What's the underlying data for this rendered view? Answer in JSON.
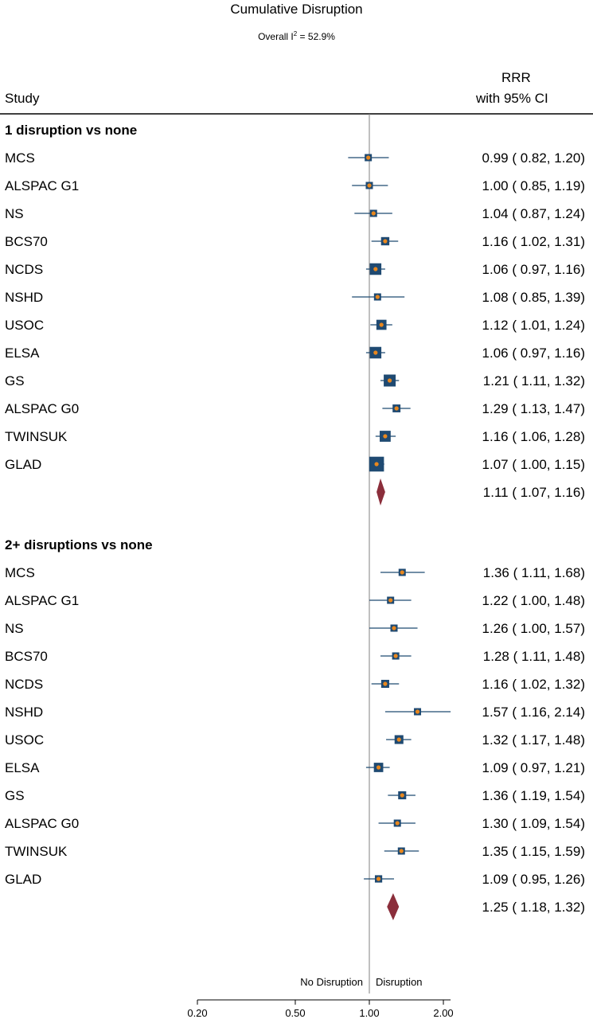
{
  "header": {
    "title": "Cumulative Disruption",
    "heterogeneity_prefix": "Overall I",
    "heterogeneity_sup": "2",
    "heterogeneity_suffix": " = 52.9%",
    "study_col": "Study",
    "rrr_col": "RRR",
    "ci_col": "with 95% CI"
  },
  "colors": {
    "box": "#1f4a72",
    "dot": "#e8871e",
    "diamond": "#8b2e3b",
    "line": "#1f4a72",
    "ref_line": "#808080"
  },
  "chart_data": {
    "type": "forest",
    "scale": "log",
    "xticks": [
      0.2,
      0.5,
      1.0,
      2.0
    ],
    "xtick_labels": [
      "0.20",
      "0.50",
      "1.00",
      "2.00"
    ],
    "xlim": [
      0.2,
      2.14
    ],
    "reference": 1.0,
    "direction_left": "No Disruption",
    "direction_right": "Disruption",
    "groups": [
      {
        "label": "1 disruption vs none",
        "studies": [
          {
            "name": "MCS",
            "rrr": 0.99,
            "lo": 0.82,
            "hi": 1.2,
            "text": "0.99 ( 0.82,  1.20)"
          },
          {
            "name": "ALSPAC G1",
            "rrr": 1.0,
            "lo": 0.85,
            "hi": 1.19,
            "text": "1.00 ( 0.85,  1.19)"
          },
          {
            "name": "NS",
            "rrr": 1.04,
            "lo": 0.87,
            "hi": 1.24,
            "text": "1.04 ( 0.87,  1.24)"
          },
          {
            "name": "BCS70",
            "rrr": 1.16,
            "lo": 1.02,
            "hi": 1.31,
            "text": "1.16 ( 1.02,  1.31)"
          },
          {
            "name": "NCDS",
            "rrr": 1.06,
            "lo": 0.97,
            "hi": 1.16,
            "text": "1.06 ( 0.97,  1.16)"
          },
          {
            "name": "NSHD",
            "rrr": 1.08,
            "lo": 0.85,
            "hi": 1.39,
            "text": "1.08 ( 0.85,  1.39)"
          },
          {
            "name": "USOC",
            "rrr": 1.12,
            "lo": 1.01,
            "hi": 1.24,
            "text": "1.12 ( 1.01,  1.24)"
          },
          {
            "name": "ELSA",
            "rrr": 1.06,
            "lo": 0.97,
            "hi": 1.16,
            "text": "1.06 ( 0.97,  1.16)"
          },
          {
            "name": "GS",
            "rrr": 1.21,
            "lo": 1.11,
            "hi": 1.32,
            "text": "1.21 ( 1.11,  1.32)"
          },
          {
            "name": "ALSPAC G0",
            "rrr": 1.29,
            "lo": 1.13,
            "hi": 1.47,
            "text": "1.29 ( 1.13,  1.47)"
          },
          {
            "name": "TWINSUK",
            "rrr": 1.16,
            "lo": 1.06,
            "hi": 1.28,
            "text": "1.16 ( 1.06,  1.28)"
          },
          {
            "name": "GLAD",
            "rrr": 1.07,
            "lo": 1.0,
            "hi": 1.15,
            "text": "1.07 ( 1.00,  1.15)"
          }
        ],
        "overall": {
          "rrr": 1.11,
          "lo": 1.07,
          "hi": 1.16,
          "text": "1.11 ( 1.07,  1.16)"
        }
      },
      {
        "label": "2+ disruptions vs none",
        "studies": [
          {
            "name": "MCS",
            "rrr": 1.36,
            "lo": 1.11,
            "hi": 1.68,
            "text": "1.36 ( 1.11,  1.68)"
          },
          {
            "name": "ALSPAC G1",
            "rrr": 1.22,
            "lo": 1.0,
            "hi": 1.48,
            "text": "1.22 ( 1.00,  1.48)"
          },
          {
            "name": "NS",
            "rrr": 1.26,
            "lo": 1.0,
            "hi": 1.57,
            "text": "1.26 ( 1.00,  1.57)"
          },
          {
            "name": "BCS70",
            "rrr": 1.28,
            "lo": 1.11,
            "hi": 1.48,
            "text": "1.28 ( 1.11,  1.48)"
          },
          {
            "name": "NCDS",
            "rrr": 1.16,
            "lo": 1.02,
            "hi": 1.32,
            "text": "1.16 ( 1.02,  1.32)"
          },
          {
            "name": "NSHD",
            "rrr": 1.57,
            "lo": 1.16,
            "hi": 2.14,
            "text": "1.57 ( 1.16,  2.14)"
          },
          {
            "name": "USOC",
            "rrr": 1.32,
            "lo": 1.17,
            "hi": 1.48,
            "text": "1.32 ( 1.17,  1.48)"
          },
          {
            "name": "ELSA",
            "rrr": 1.09,
            "lo": 0.97,
            "hi": 1.21,
            "text": "1.09 ( 0.97,  1.21)"
          },
          {
            "name": "GS",
            "rrr": 1.36,
            "lo": 1.19,
            "hi": 1.54,
            "text": "1.36 ( 1.19,  1.54)"
          },
          {
            "name": "ALSPAC G0",
            "rrr": 1.3,
            "lo": 1.09,
            "hi": 1.54,
            "text": "1.30 ( 1.09,  1.54)"
          },
          {
            "name": "TWINSUK",
            "rrr": 1.35,
            "lo": 1.15,
            "hi": 1.59,
            "text": "1.35 ( 1.15,  1.59)"
          },
          {
            "name": "GLAD",
            "rrr": 1.09,
            "lo": 0.95,
            "hi": 1.26,
            "text": "1.09 ( 0.95,  1.26)"
          }
        ],
        "overall": {
          "rrr": 1.25,
          "lo": 1.18,
          "hi": 1.32,
          "text": "1.25 ( 1.18,  1.32)"
        }
      }
    ]
  }
}
